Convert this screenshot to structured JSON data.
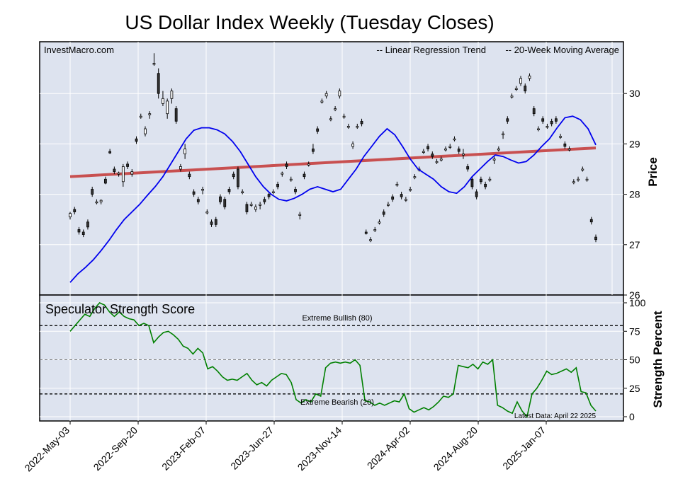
{
  "chart_data": {
    "type": "line",
    "title": "US Dollar Index Weekly (Tuesday Closes)",
    "watermark": "InvestMacro.com",
    "legend": {
      "placement": "top-right",
      "entries": [
        {
          "label": "-- Linear Regression Trend",
          "color": "#8b0000"
        },
        {
          "label": "-- 20-Week Moving Average",
          "color": "#0000ee"
        }
      ]
    },
    "x_tick_labels": [
      "2022-May-03",
      "2022-Sep-20",
      "2023-Feb-07",
      "2023-Jun-27",
      "2023-Nov-14",
      "2024-Apr-02",
      "2024-Aug-20",
      "2025-Jan-07"
    ],
    "price_panel": {
      "ylabel": "Price",
      "yticks": [
        26,
        27,
        28,
        29,
        30
      ],
      "ylim": [
        26,
        30.9
      ],
      "regression": {
        "start": 28.35,
        "end": 28.92,
        "color": "#c85050"
      },
      "ohlc": [
        [
          27.55,
          27.65,
          27.5,
          27.62
        ],
        [
          27.7,
          27.75,
          27.6,
          27.65
        ],
        [
          27.3,
          27.35,
          27.2,
          27.25
        ],
        [
          27.25,
          27.3,
          27.15,
          27.2
        ],
        [
          27.45,
          27.5,
          27.3,
          27.35
        ],
        [
          28.1,
          28.15,
          27.95,
          28.0
        ],
        [
          27.85,
          27.9,
          27.8,
          27.85
        ],
        [
          27.85,
          27.9,
          27.8,
          27.88
        ],
        [
          28.3,
          28.35,
          28.2,
          28.22
        ],
        [
          28.85,
          28.9,
          28.8,
          28.82
        ],
        [
          28.5,
          28.55,
          28.4,
          28.45
        ],
        [
          28.4,
          28.45,
          28.35,
          28.42
        ],
        [
          28.25,
          28.6,
          28.15,
          28.55
        ],
        [
          28.6,
          28.65,
          28.5,
          28.55
        ],
        [
          28.4,
          28.5,
          28.35,
          28.45
        ],
        [
          29.1,
          29.15,
          29.0,
          29.05
        ],
        [
          29.55,
          29.6,
          29.5,
          29.55
        ],
        [
          29.2,
          29.35,
          29.15,
          29.3
        ],
        [
          29.6,
          29.65,
          29.5,
          29.6
        ],
        [
          30.6,
          30.8,
          30.55,
          30.6
        ],
        [
          30.4,
          30.5,
          29.9,
          30.0
        ],
        [
          29.8,
          30.05,
          29.75,
          29.9
        ],
        [
          29.6,
          29.9,
          29.5,
          29.85
        ],
        [
          29.9,
          30.1,
          29.8,
          30.05
        ],
        [
          29.7,
          29.75,
          29.4,
          29.45
        ],
        [
          28.5,
          28.6,
          28.45,
          28.55
        ],
        [
          28.8,
          29.0,
          28.7,
          28.9
        ],
        [
          28.4,
          28.45,
          28.3,
          28.35
        ],
        [
          28.05,
          28.1,
          27.95,
          28.0
        ],
        [
          27.9,
          27.95,
          27.8,
          27.85
        ],
        [
          28.1,
          28.15,
          28.0,
          28.1
        ],
        [
          27.65,
          27.7,
          27.6,
          27.65
        ],
        [
          27.45,
          27.5,
          27.35,
          27.4
        ],
        [
          27.5,
          27.55,
          27.35,
          27.4
        ],
        [
          27.95,
          28.0,
          27.8,
          27.85
        ],
        [
          27.9,
          27.95,
          27.7,
          27.75
        ],
        [
          28.1,
          28.15,
          28.0,
          28.05
        ],
        [
          28.4,
          28.45,
          28.3,
          28.35
        ],
        [
          28.5,
          28.55,
          28.1,
          28.15
        ],
        [
          28.05,
          28.1,
          28.0,
          28.05
        ],
        [
          27.8,
          27.85,
          27.6,
          27.65
        ],
        [
          27.8,
          27.85,
          27.75,
          27.8
        ],
        [
          27.7,
          27.8,
          27.65,
          27.75
        ],
        [
          27.8,
          27.85,
          27.7,
          27.8
        ],
        [
          27.9,
          27.95,
          27.8,
          27.85
        ],
        [
          28.0,
          28.05,
          27.9,
          27.95
        ],
        [
          28.05,
          28.1,
          28.0,
          28.05
        ],
        [
          28.2,
          28.25,
          28.1,
          28.15
        ],
        [
          28.4,
          28.45,
          28.35,
          28.42
        ],
        [
          28.6,
          28.65,
          28.5,
          28.55
        ],
        [
          28.3,
          28.35,
          28.25,
          28.3
        ],
        [
          28.1,
          28.15,
          28.0,
          28.05
        ],
        [
          27.6,
          27.65,
          27.5,
          27.6
        ],
        [
          28.4,
          28.45,
          28.3,
          28.35
        ],
        [
          28.6,
          28.65,
          28.55,
          28.6
        ],
        [
          28.9,
          29.0,
          28.8,
          28.85
        ],
        [
          29.3,
          29.35,
          29.2,
          29.25
        ],
        [
          29.85,
          29.9,
          29.8,
          29.85
        ],
        [
          29.95,
          30.05,
          29.9,
          30.0
        ],
        [
          29.5,
          29.55,
          29.45,
          29.5
        ],
        [
          29.7,
          29.75,
          29.65,
          29.7
        ],
        [
          29.95,
          30.1,
          29.9,
          30.05
        ],
        [
          29.55,
          29.6,
          29.5,
          29.55
        ],
        [
          29.35,
          29.4,
          29.3,
          29.35
        ],
        [
          28.95,
          29.05,
          28.9,
          29.0
        ],
        [
          29.35,
          29.4,
          29.3,
          29.35
        ],
        [
          29.45,
          29.5,
          29.35,
          29.4
        ],
        [
          27.25,
          27.3,
          27.2,
          27.22
        ],
        [
          27.1,
          27.15,
          27.05,
          27.1
        ],
        [
          27.3,
          27.35,
          27.25,
          27.3
        ],
        [
          27.45,
          27.5,
          27.4,
          27.45
        ],
        [
          27.65,
          27.7,
          27.55,
          27.6
        ],
        [
          27.8,
          27.85,
          27.75,
          27.8
        ],
        [
          27.95,
          28.0,
          27.85,
          27.9
        ],
        [
          28.2,
          28.25,
          28.15,
          28.2
        ],
        [
          28.0,
          28.05,
          27.9,
          27.95
        ],
        [
          27.9,
          27.95,
          27.85,
          27.9
        ],
        [
          28.1,
          28.15,
          28.05,
          28.1
        ],
        [
          28.35,
          28.4,
          28.3,
          28.35
        ],
        [
          28.5,
          28.55,
          28.45,
          28.5
        ],
        [
          28.85,
          28.9,
          28.8,
          28.85
        ],
        [
          28.95,
          29.0,
          28.85,
          28.9
        ],
        [
          28.8,
          28.85,
          28.7,
          28.75
        ],
        [
          28.65,
          28.7,
          28.6,
          28.65
        ],
        [
          28.7,
          28.75,
          28.65,
          28.7
        ],
        [
          28.9,
          28.95,
          28.85,
          28.9
        ],
        [
          28.95,
          29.0,
          28.9,
          28.95
        ],
        [
          29.1,
          29.15,
          29.05,
          29.1
        ],
        [
          28.9,
          28.95,
          28.8,
          28.85
        ],
        [
          28.8,
          28.9,
          28.7,
          28.8
        ],
        [
          28.55,
          28.6,
          28.45,
          28.5
        ],
        [
          28.3,
          28.35,
          28.1,
          28.15
        ],
        [
          28.05,
          28.1,
          27.9,
          27.95
        ],
        [
          28.3,
          28.35,
          28.2,
          28.25
        ],
        [
          28.2,
          28.25,
          28.1,
          28.15
        ],
        [
          28.3,
          28.35,
          28.25,
          28.3
        ],
        [
          28.7,
          28.75,
          28.6,
          28.7
        ],
        [
          28.9,
          28.95,
          28.85,
          28.9
        ],
        [
          29.2,
          29.25,
          29.1,
          29.2
        ],
        [
          29.5,
          29.55,
          29.4,
          29.45
        ],
        [
          29.95,
          30.0,
          29.9,
          29.95
        ],
        [
          30.1,
          30.15,
          30.05,
          30.1
        ],
        [
          30.2,
          30.35,
          30.15,
          30.3
        ],
        [
          30.15,
          30.2,
          30.0,
          30.05
        ],
        [
          30.3,
          30.4,
          30.25,
          30.35
        ],
        [
          29.7,
          29.75,
          29.55,
          29.6
        ],
        [
          29.3,
          29.35,
          29.25,
          29.3
        ],
        [
          29.5,
          29.55,
          29.4,
          29.45
        ],
        [
          29.35,
          29.4,
          29.3,
          29.35
        ],
        [
          29.45,
          29.5,
          29.35,
          29.4
        ],
        [
          29.5,
          29.55,
          29.4,
          29.45
        ],
        [
          29.15,
          29.2,
          29.1,
          29.15
        ],
        [
          29.0,
          29.05,
          28.9,
          28.95
        ],
        [
          28.9,
          28.95,
          28.85,
          28.9
        ],
        [
          28.25,
          28.3,
          28.2,
          28.25
        ],
        [
          28.3,
          28.35,
          28.25,
          28.3
        ],
        [
          28.5,
          28.55,
          28.45,
          28.5
        ],
        [
          28.3,
          28.35,
          28.25,
          28.3
        ],
        [
          27.5,
          27.55,
          27.4,
          27.45
        ],
        [
          27.15,
          27.2,
          27.05,
          27.1
        ]
      ],
      "ma": [
        26.25,
        26.42,
        26.55,
        26.7,
        26.88,
        27.08,
        27.3,
        27.5,
        27.65,
        27.8,
        27.98,
        28.15,
        28.35,
        28.6,
        28.85,
        29.1,
        29.27,
        29.32,
        29.32,
        29.28,
        29.2,
        29.05,
        28.85,
        28.6,
        28.35,
        28.15,
        28.0,
        27.9,
        27.87,
        27.92,
        28.0,
        28.1,
        28.15,
        28.1,
        28.05,
        28.1,
        28.3,
        28.5,
        28.75,
        28.95,
        29.15,
        29.3,
        29.18,
        28.95,
        28.7,
        28.5,
        28.4,
        28.3,
        28.15,
        28.05,
        28.02,
        28.15,
        28.35,
        28.5,
        28.65,
        28.78,
        28.75,
        28.68,
        28.62,
        28.65,
        28.78,
        28.95,
        29.1,
        29.32,
        29.52,
        29.55,
        29.48,
        29.3,
        28.98
      ],
      "ma_x": [
        0,
        0.033,
        0.066,
        0.099,
        0.132,
        0.165,
        0.198,
        0.231,
        0.264,
        0.297,
        0.33,
        0.363,
        0.396,
        0.429,
        0.462,
        0.495,
        0.528,
        0.561,
        0.594,
        0.627,
        0.66,
        0.693,
        0.726,
        0.759,
        0.792,
        0.825,
        0.858,
        0.891,
        0.924,
        0.957,
        0.99,
        1.023,
        1.056,
        1.089,
        1.122,
        1.155,
        1.188,
        1.221,
        1.254,
        1.287,
        1.32,
        1.353,
        1.386,
        1.419,
        1.452,
        1.485,
        1.518,
        1.551,
        1.584,
        1.617,
        1.65,
        1.683,
        1.716,
        1.749,
        1.782,
        1.815,
        1.848,
        1.881,
        1.914,
        1.947,
        1.98,
        2.013,
        2.046,
        2.079,
        2.112,
        2.145,
        2.178,
        2.211,
        2.244
      ]
    },
    "strength_panel": {
      "title": "Speculator Strength Score",
      "ylabel": "Strength Percent",
      "yticks": [
        0,
        25,
        50,
        75,
        100
      ],
      "ylim": [
        0,
        100
      ],
      "lines": [
        {
          "value": 80,
          "label": "Extreme Bullish (80)",
          "style": "dashed"
        },
        {
          "value": 50,
          "label": "",
          "style": "dashed-gray"
        },
        {
          "value": 20,
          "label": "Extreme Bearish (20)",
          "style": "dashed"
        }
      ],
      "note": "Latest Data: April 22 2025",
      "values": [
        75,
        80,
        85,
        90,
        88,
        95,
        100,
        98,
        92,
        88,
        92,
        88,
        86,
        85,
        80,
        82,
        80,
        65,
        70,
        74,
        75,
        72,
        68,
        62,
        60,
        55,
        60,
        56,
        42,
        44,
        40,
        35,
        32,
        33,
        32,
        35,
        38,
        32,
        28,
        30,
        27,
        32,
        35,
        38,
        37,
        30,
        15,
        12,
        15,
        13,
        20,
        18,
        43,
        47,
        48,
        47,
        48,
        47,
        50,
        45,
        14,
        13,
        10,
        12,
        10,
        12,
        14,
        13,
        20,
        7,
        4,
        6,
        8,
        6,
        9,
        13,
        18,
        17,
        20,
        45,
        44,
        43,
        46,
        42,
        48,
        46,
        50,
        10,
        8,
        5,
        3,
        13,
        5,
        0,
        20,
        25,
        32,
        40,
        37,
        38,
        40,
        42,
        39,
        43,
        22,
        21,
        10,
        5
      ]
    }
  }
}
